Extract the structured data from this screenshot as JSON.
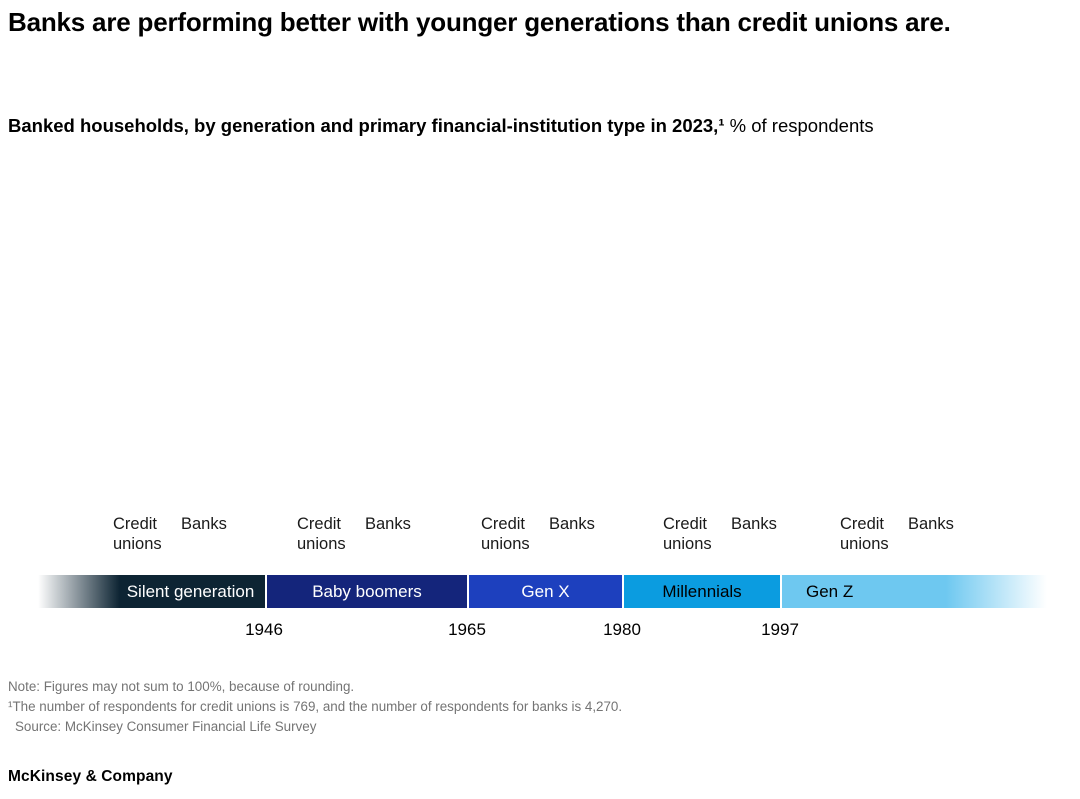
{
  "title": "Banks are performing better with younger generations than credit unions are.",
  "subtitle": {
    "bold_part": "Banked households, by generation and primary financial-institution type in 2023,¹",
    "regular_part": " % of respondents"
  },
  "group_labels": {
    "credit_unions": "Credit unions",
    "banks": "Banks"
  },
  "timeline": {
    "segments": [
      {
        "label": "Silent generation",
        "color": "#0d2433",
        "text_color": "#ffffff",
        "fade_left": true
      },
      {
        "label": "Baby boomers",
        "color": "#14257b",
        "text_color": "#ffffff"
      },
      {
        "label": "Gen X",
        "color": "#1d40be",
        "text_color": "#ffffff"
      },
      {
        "label": "Millennials",
        "color": "#0b9ce0",
        "text_color": "#000000"
      },
      {
        "label": "Gen Z",
        "color": "#6ec8f0",
        "text_color": "#000000",
        "fade_right": true
      }
    ],
    "years": [
      "1946",
      "1965",
      "1980",
      "1997"
    ]
  },
  "footnotes": {
    "note": "Note: Figures may not sum to 100%, because of rounding.",
    "respondents": "¹The number of respondents for credit unions is 769, and the number of respondents for banks is 4,270.",
    "source": "Source: McKinsey Consumer Financial Life Survey"
  },
  "footer": "McKinsey & Company",
  "chart_data": {
    "type": "bar",
    "title": "Banked households, by generation and primary financial-institution type in 2023, % of respondents",
    "categories": [
      "Silent generation",
      "Baby boomers",
      "Gen X",
      "Millennials",
      "Gen Z"
    ],
    "series": [
      {
        "name": "Credit unions",
        "values": []
      },
      {
        "name": "Banks",
        "values": []
      }
    ],
    "values_visible": false,
    "generation_boundary_years": [
      1946,
      1965,
      1980,
      1997
    ],
    "legend_position": "above-axis",
    "colors": {
      "silent_generation": "#0d2433",
      "baby_boomers": "#14257b",
      "gen_x": "#1d40be",
      "millennials": "#0b9ce0",
      "gen_z": "#6ec8f0"
    }
  }
}
